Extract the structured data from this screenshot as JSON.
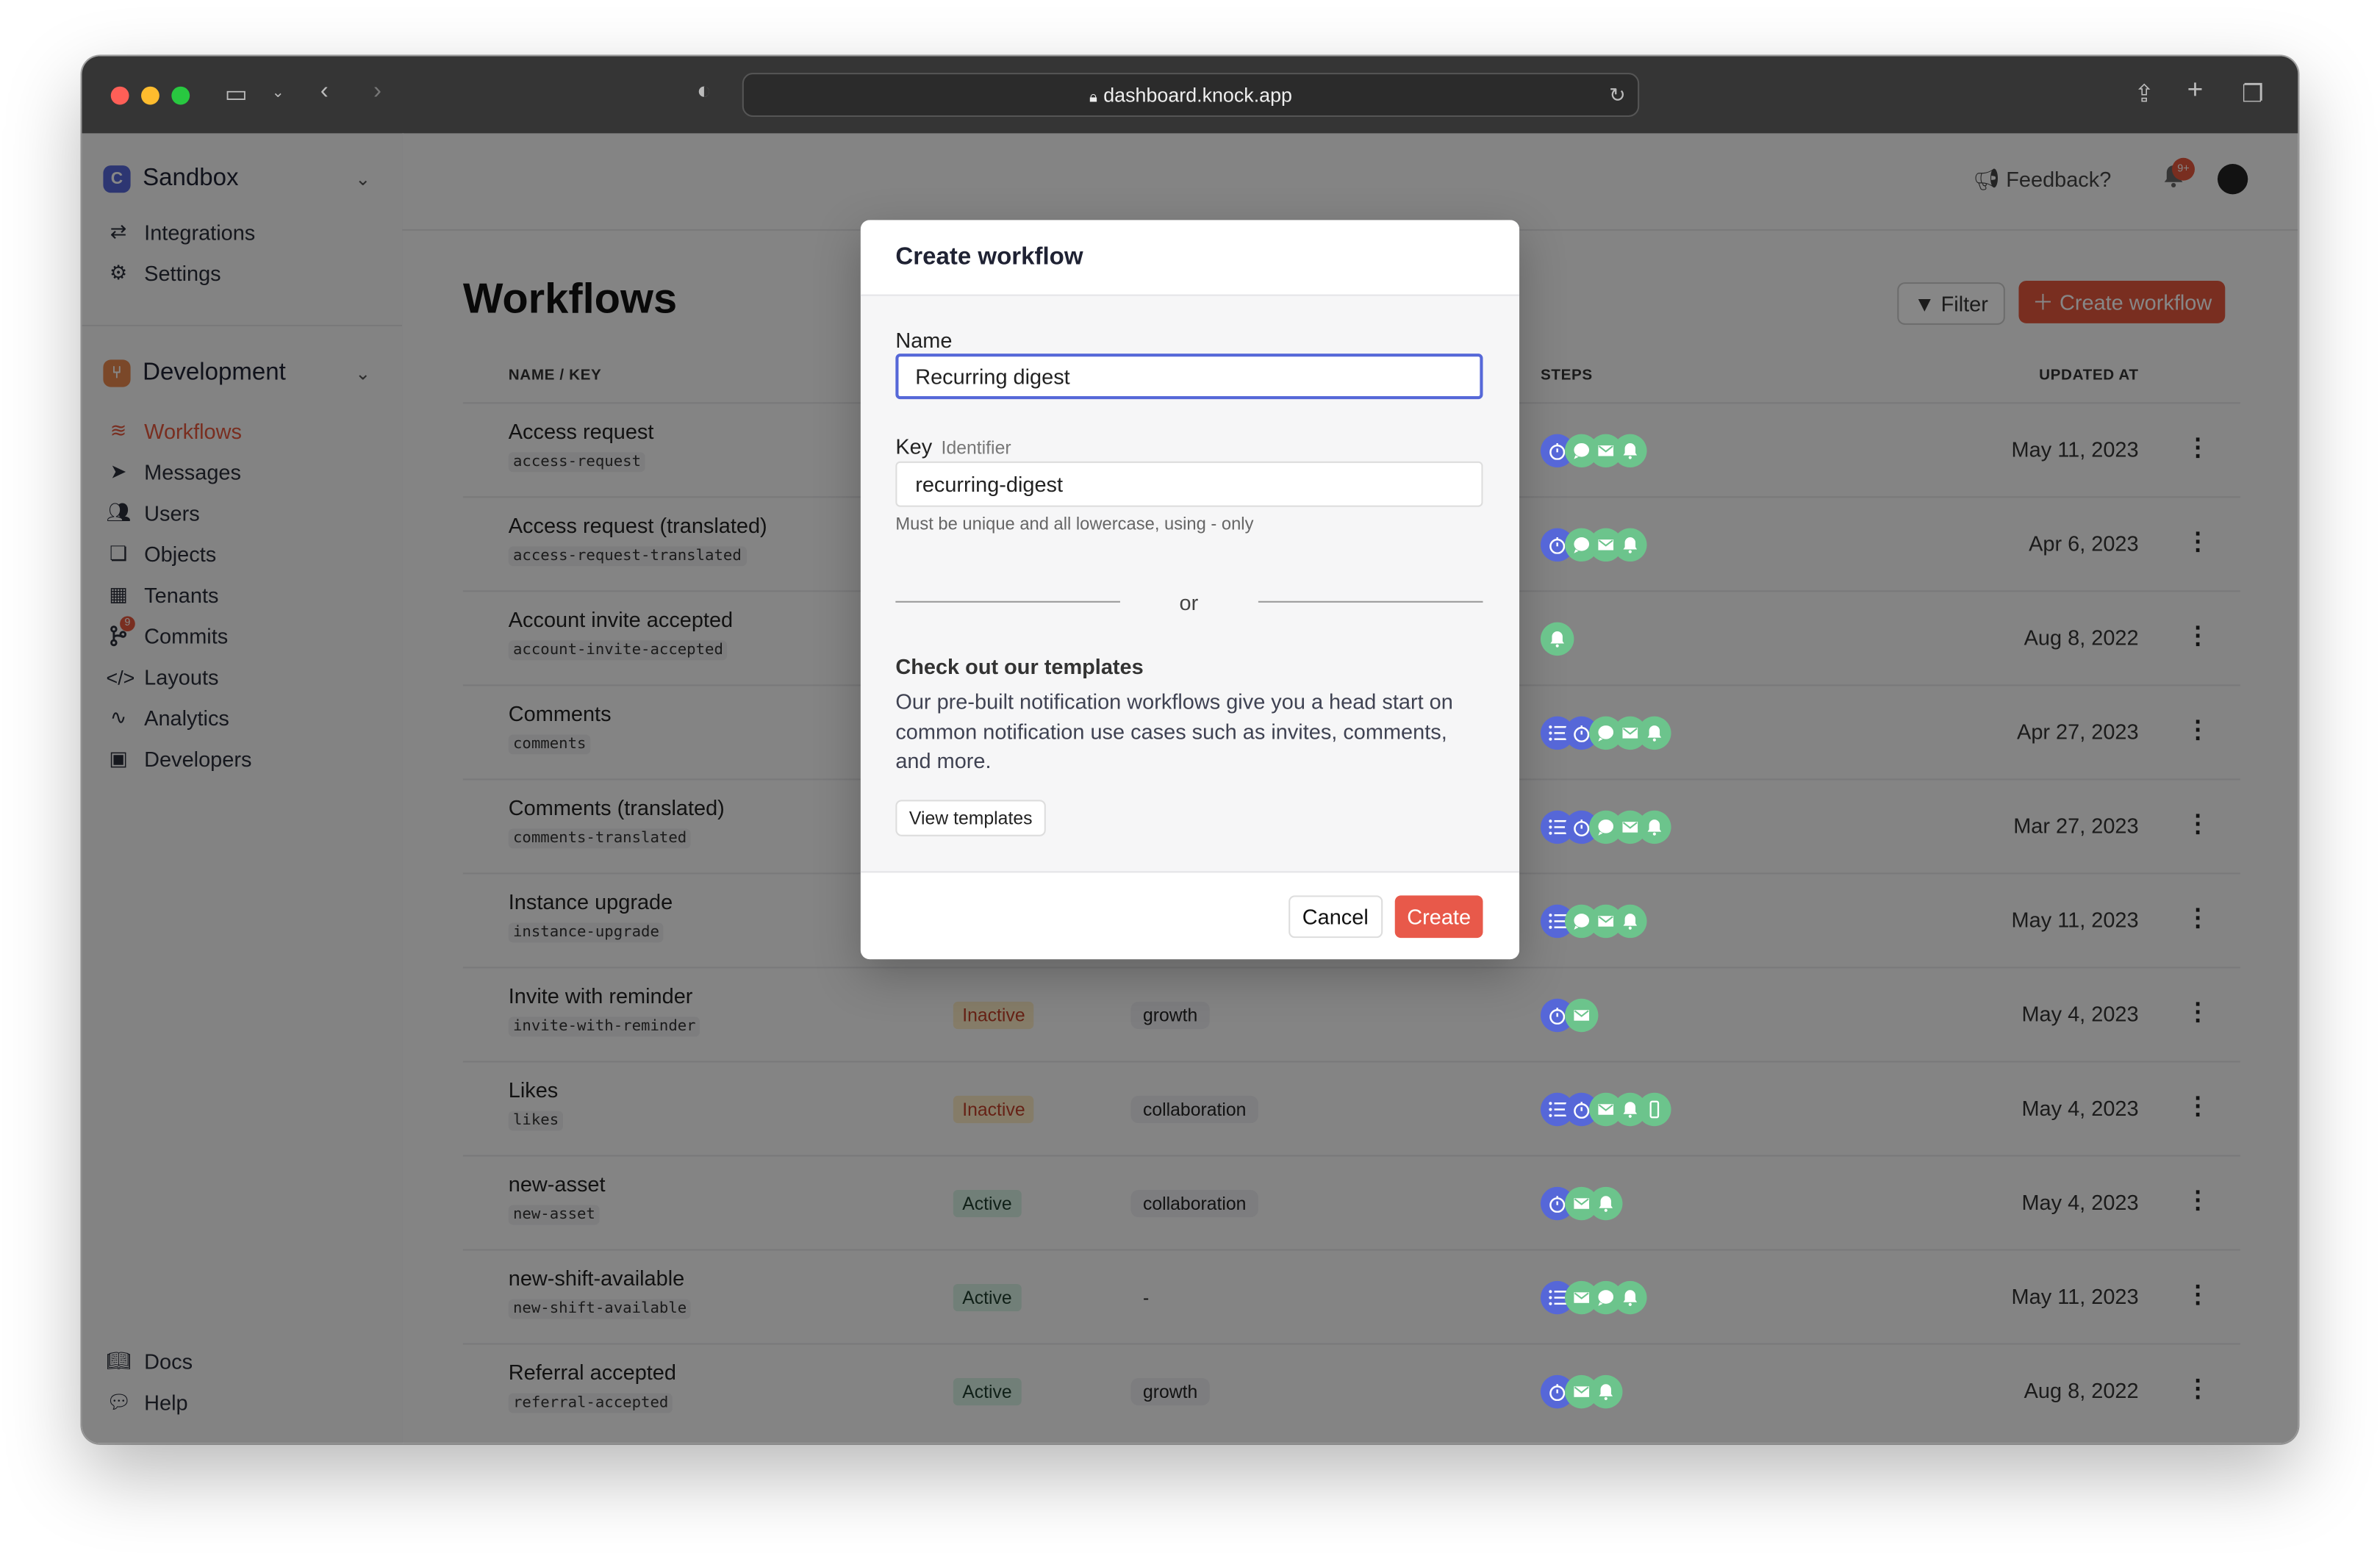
{
  "browser": {
    "url": "dashboard.knock.app"
  },
  "sidebar": {
    "account": {
      "name": "Sandbox",
      "badge": "C"
    },
    "account_items": [
      {
        "label": "Integrations",
        "icon": "arrows-icon"
      },
      {
        "label": "Settings",
        "icon": "gear-icon"
      }
    ],
    "environment": {
      "name": "Development",
      "badge": "⑂"
    },
    "items": [
      {
        "label": "Workflows",
        "icon": "layers-icon",
        "active": true
      },
      {
        "label": "Messages",
        "icon": "paper-plane-icon"
      },
      {
        "label": "Users",
        "icon": "users-icon"
      },
      {
        "label": "Objects",
        "icon": "objects-icon"
      },
      {
        "label": "Tenants",
        "icon": "building-icon"
      },
      {
        "label": "Commits",
        "icon": "git-commit-icon",
        "badge": "9"
      },
      {
        "label": "Layouts",
        "icon": "code-icon"
      },
      {
        "label": "Analytics",
        "icon": "pulse-icon"
      },
      {
        "label": "Developers",
        "icon": "terminal-icon"
      }
    ],
    "footer": [
      {
        "label": "Docs",
        "icon": "book-icon"
      },
      {
        "label": "Help",
        "icon": "chat-icon"
      }
    ]
  },
  "header": {
    "feedback": "Feedback?",
    "notifications_count": "9+"
  },
  "page": {
    "title": "Workflows",
    "filter_label": "Filter",
    "create_label": "Create workflow",
    "columns": {
      "name": "NAME / KEY",
      "steps": "STEPS",
      "updated": "UPDATED AT"
    },
    "rows": [
      {
        "name": "Access request",
        "key": "access-request",
        "steps": [
          "delay",
          "chat",
          "email",
          "in-app"
        ],
        "updated": "May 11, 2023"
      },
      {
        "name": "Access request (translated)",
        "key": "access-request-translated",
        "steps": [
          "delay",
          "chat",
          "email",
          "in-app"
        ],
        "updated": "Apr 6, 2023"
      },
      {
        "name": "Account invite accepted",
        "key": "account-invite-accepted",
        "steps": [
          "in-app"
        ],
        "updated": "Aug 8, 2022"
      },
      {
        "name": "Comments",
        "key": "comments",
        "steps": [
          "batch",
          "delay",
          "chat",
          "email",
          "in-app"
        ],
        "updated": "Apr 27, 2023"
      },
      {
        "name": "Comments (translated)",
        "key": "comments-translated",
        "steps": [
          "batch",
          "delay",
          "chat",
          "email",
          "in-app"
        ],
        "updated": "Mar 27, 2023"
      },
      {
        "name": "Instance upgrade",
        "key": "instance-upgrade",
        "steps": [
          "batch",
          "chat",
          "email",
          "in-app"
        ],
        "updated": "May 11, 2023"
      },
      {
        "name": "Invite with reminder",
        "key": "invite-with-reminder",
        "status": "Inactive",
        "category": "growth",
        "steps": [
          "delay",
          "email"
        ],
        "updated": "May 4, 2023"
      },
      {
        "name": "Likes",
        "key": "likes",
        "status": "Inactive",
        "category": "collaboration",
        "steps": [
          "batch",
          "delay",
          "email",
          "in-app",
          "sms"
        ],
        "updated": "May 4, 2023"
      },
      {
        "name": "new-asset",
        "key": "new-asset",
        "status": "Active",
        "category": "collaboration",
        "steps": [
          "delay",
          "email",
          "in-app"
        ],
        "updated": "May 4, 2023"
      },
      {
        "name": "new-shift-available",
        "key": "new-shift-available",
        "status": "Active",
        "category": "-",
        "steps": [
          "batch",
          "email",
          "chat",
          "in-app"
        ],
        "updated": "May 11, 2023"
      },
      {
        "name": "Referral accepted",
        "key": "referral-accepted",
        "status": "Active",
        "category": "growth",
        "steps": [
          "delay",
          "email",
          "in-app"
        ],
        "updated": "Aug 8, 2022"
      }
    ]
  },
  "modal": {
    "title": "Create workflow",
    "name_label": "Name",
    "name_value": "Recurring digest",
    "key_label": "Key",
    "key_hint": "Identifier",
    "key_value": "recurring-digest",
    "key_help": "Must be unique and all lowercase, using - only",
    "or": "or",
    "templates_heading": "Check out our templates",
    "templates_text": "Our pre-built notification workflows give you a head start on common notification use cases such as invites, comments, and more.",
    "view_templates": "View templates",
    "cancel": "Cancel",
    "create": "Create"
  },
  "colors": {
    "accent": "#e4583e",
    "function_step": "#5667d8",
    "channel_step": "#6cc48c",
    "focus": "#5668d8"
  }
}
